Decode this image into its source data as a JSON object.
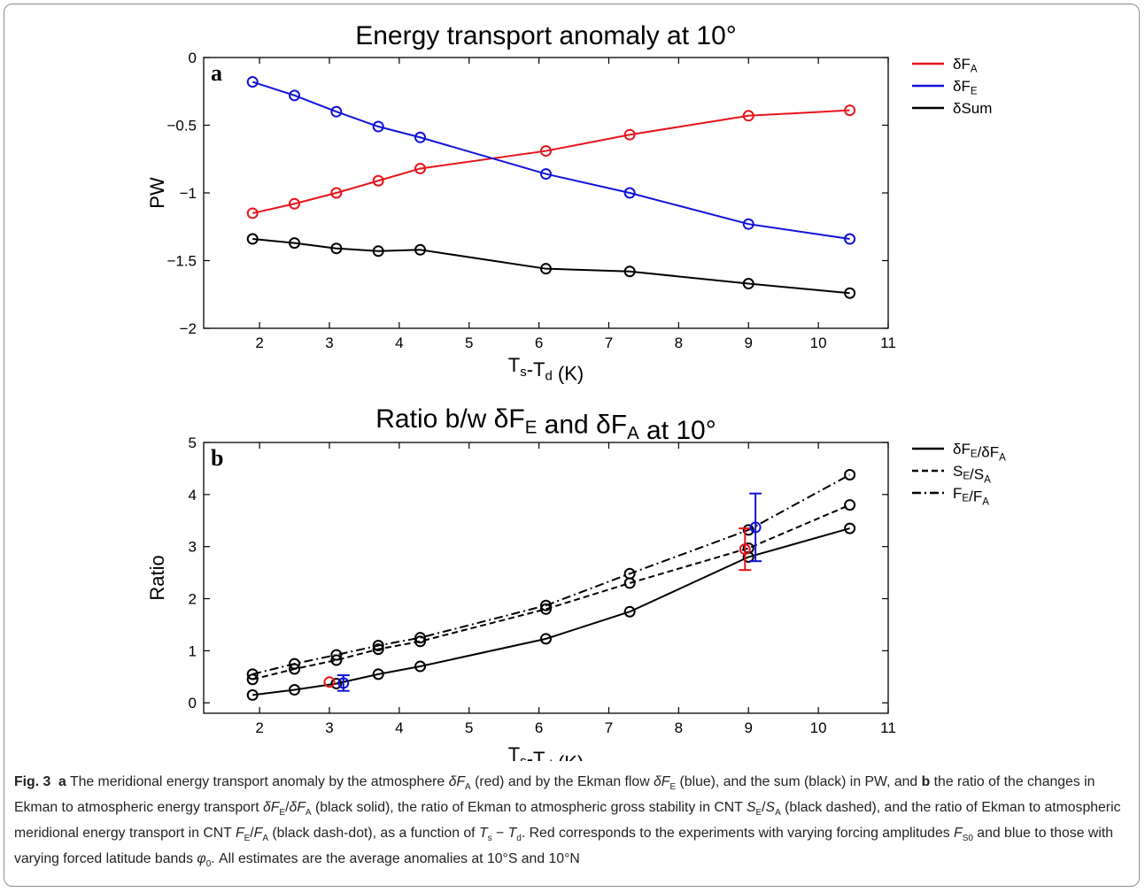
{
  "chart_data": [
    {
      "type": "line",
      "panel_label": "a",
      "title": "Energy transport anomaly at 10°",
      "xlabel": "Ts-Td (K)",
      "ylabel": "PW",
      "xlim": [
        1.2,
        11
      ],
      "ylim": [
        -2,
        0
      ],
      "xticks": [
        2,
        3,
        4,
        5,
        6,
        7,
        8,
        9,
        10,
        11
      ],
      "yticks": [
        0,
        -0.5,
        -1,
        -1.5,
        -2
      ],
      "ytick_labels": [
        "0",
        "−0.5",
        "−1",
        "−1.5",
        "−2"
      ],
      "legend_position": "right-top-outside",
      "x": [
        1.9,
        2.5,
        3.1,
        3.7,
        4.3,
        6.1,
        7.3,
        9.0,
        10.45
      ],
      "series": [
        {
          "name": "δFA",
          "color": "#e8131b",
          "values": [
            -1.15,
            -1.08,
            -1.0,
            -0.91,
            -0.82,
            -0.69,
            -0.57,
            -0.43,
            -0.39
          ]
        },
        {
          "name": "δFE",
          "color": "#1111d8",
          "values": [
            -0.18,
            -0.28,
            -0.4,
            -0.51,
            -0.59,
            -0.86,
            -1.0,
            -1.23,
            -1.34
          ]
        },
        {
          "name": "δSum",
          "color": "#000000",
          "values": [
            -1.34,
            -1.37,
            -1.41,
            -1.43,
            -1.42,
            -1.56,
            -1.58,
            -1.67,
            -1.74
          ]
        }
      ]
    },
    {
      "type": "line",
      "panel_label": "b",
      "title": "Ratio b/w δFE and δFA at 10°",
      "xlabel": "Ts-Td (K)",
      "ylabel": "Ratio",
      "xlim": [
        1.2,
        11
      ],
      "ylim": [
        -0.2,
        5
      ],
      "xticks": [
        2,
        3,
        4,
        5,
        6,
        7,
        8,
        9,
        10,
        11
      ],
      "yticks": [
        0,
        1,
        2,
        3,
        4,
        5
      ],
      "ytick_labels": [
        "0",
        "1",
        "2",
        "3",
        "4",
        "5"
      ],
      "legend_position": "right-top-outside",
      "series": [
        {
          "name": "δFE/δFA",
          "color": "#000000",
          "style": "solid",
          "x": [
            1.9,
            2.5,
            3.1,
            3.7,
            4.3,
            6.1,
            7.3,
            9.0,
            10.45
          ],
          "values": [
            0.15,
            0.25,
            0.37,
            0.55,
            0.7,
            1.23,
            1.75,
            2.8,
            3.35
          ]
        },
        {
          "name": "SE/SA",
          "color": "#000000",
          "style": "dashed",
          "x": [
            1.9,
            2.5,
            3.1,
            3.7,
            4.3,
            6.1,
            7.3,
            9.0,
            10.45
          ],
          "values": [
            0.45,
            0.65,
            0.82,
            1.03,
            1.18,
            1.8,
            2.3,
            2.97,
            3.8
          ]
        },
        {
          "name": "FE/FA",
          "color": "#000000",
          "style": "dashdot",
          "x": [
            1.9,
            2.5,
            3.1,
            3.7,
            4.3,
            6.1,
            7.3,
            9.0,
            10.45
          ],
          "values": [
            0.55,
            0.75,
            0.92,
            1.1,
            1.25,
            1.87,
            2.48,
            3.32,
            4.38
          ]
        }
      ],
      "error_points": [
        {
          "x": 3.0,
          "y": 0.4,
          "yerr": 0.0,
          "color": "#e8131b"
        },
        {
          "x": 3.2,
          "y": 0.38,
          "yerr": 0.15,
          "color": "#1111d8"
        },
        {
          "x": 8.95,
          "y": 2.95,
          "yerr": 0.4,
          "color": "#e8131b"
        },
        {
          "x": 9.1,
          "y": 3.37,
          "yerr": 0.65,
          "color": "#1111d8"
        }
      ]
    }
  ],
  "caption": {
    "fig_label": "Fig. 3",
    "text_html": "<b>a</b> The meridional energy transport anomaly by the atmosphere <i>δF</i><sub>A</sub> (red) and by the Ekman flow <i>δF</i><sub>E</sub> (blue), and the sum (black) in PW, and <b>b</b> the ratio of the changes in Ekman to atmospheric energy transport <i>δF</i><sub>E</sub>/<i>δF</i><sub>A</sub> (black solid), the ratio of Ekman to atmospheric gross stability in CNT <i>S</i><sub>E</sub>/<i>S</i><sub>A</sub> (black dashed), and the ratio of Ekman to atmospheric meridional energy transport in CNT <i>F</i><sub>E</sub>/<i>F</i><sub>A</sub> (black dash-dot), as a function of <i>T</i><sub>s</sub> − <i>T</i><sub>d</sub>. Red corresponds to the experiments with varying forcing amplitudes <i>F</i><sub>S0</sub> and blue to those with varying forced latitude bands <i>φ</i><sub>0</sub>. All estimates are the average anomalies at 10°S and 10°N"
  }
}
